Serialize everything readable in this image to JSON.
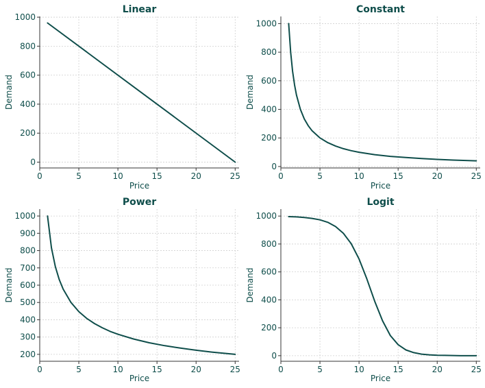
{
  "colors": {
    "line": "#0e4d4a",
    "text": "#0e4d4a",
    "grid": "#cfcfcf",
    "axis": "#333333"
  },
  "chart_data": [
    {
      "type": "line",
      "title": "Linear",
      "xlabel": "Price",
      "ylabel": "Demand",
      "xlim": [
        0,
        25.5
      ],
      "ylim": [
        -40,
        1005
      ],
      "xticks": [
        0,
        5,
        10,
        15,
        20,
        25
      ],
      "yticks": [
        0,
        200,
        400,
        600,
        800,
        1000
      ],
      "grid": true,
      "series": [
        {
          "x": [
            1,
            25
          ],
          "y": [
            960,
            0
          ]
        }
      ]
    },
    {
      "type": "line",
      "title": "Constant",
      "xlabel": "Price",
      "ylabel": "Demand",
      "xlim": [
        0,
        25.5
      ],
      "ylim": [
        -10,
        1050
      ],
      "xticks": [
        0,
        5,
        10,
        15,
        20,
        25
      ],
      "yticks": [
        0,
        200,
        400,
        600,
        800,
        1000
      ],
      "grid": true,
      "series": [
        {
          "x": [
            1,
            1.25,
            1.5,
            1.75,
            2,
            2.5,
            3,
            3.5,
            4,
            5,
            6,
            7,
            8,
            9,
            10,
            12,
            14,
            16,
            18,
            20,
            22,
            25
          ],
          "y": [
            1000,
            800,
            667,
            571,
            500,
            400,
            333,
            286,
            250,
            200,
            167,
            143,
            125,
            111,
            100,
            83,
            71,
            63,
            56,
            50,
            45,
            40
          ]
        }
      ]
    },
    {
      "type": "line",
      "title": "Power",
      "xlabel": "Price",
      "ylabel": "Demand",
      "xlim": [
        0,
        25.5
      ],
      "ylim": [
        160,
        1040
      ],
      "xticks": [
        0,
        5,
        10,
        15,
        20,
        25
      ],
      "yticks": [
        200,
        300,
        400,
        500,
        600,
        700,
        800,
        900,
        1000
      ],
      "grid": true,
      "series": [
        {
          "x": [
            1,
            1.5,
            2,
            2.5,
            3,
            4,
            5,
            6,
            7,
            8,
            9,
            10,
            12,
            14,
            16,
            18,
            20,
            22,
            25
          ],
          "y": [
            1000,
            816,
            707,
            632,
            577,
            500,
            447,
            408,
            378,
            354,
            333,
            316,
            289,
            267,
            250,
            236,
            224,
            213,
            200
          ]
        }
      ]
    },
    {
      "type": "line",
      "title": "Logit",
      "xlabel": "Price",
      "ylabel": "Demand",
      "xlim": [
        0,
        25.5
      ],
      "ylim": [
        -40,
        1050
      ],
      "xticks": [
        0,
        5,
        10,
        15,
        20,
        25
      ],
      "yticks": [
        0,
        200,
        400,
        600,
        800,
        1000
      ],
      "grid": true,
      "series": [
        {
          "x": [
            1,
            2,
            3,
            4,
            5,
            6,
            7,
            8,
            9,
            10,
            11,
            12,
            13,
            14,
            15,
            16,
            17,
            18,
            19,
            20,
            21,
            22,
            23,
            24,
            25
          ],
          "y": [
            996,
            994,
            990,
            983,
            973,
            955,
            925,
            876,
            802,
            693,
            550,
            391,
            250,
            144,
            79,
            41,
            22,
            11,
            6,
            3,
            2,
            1,
            0,
            0,
            0
          ]
        }
      ]
    }
  ]
}
